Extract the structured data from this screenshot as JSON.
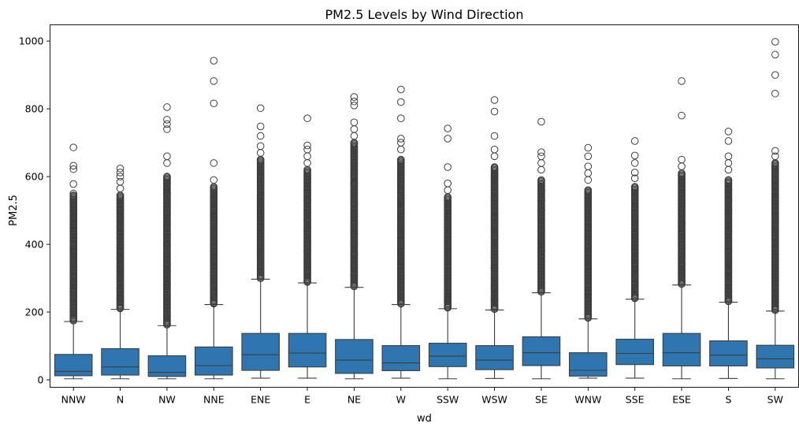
{
  "chart_data": {
    "type": "boxplot",
    "title": "PM2.5 Levels by Wind Direction",
    "xlabel": "wd",
    "ylabel": "PM2.5",
    "ylim": [
      -22,
      1048
    ],
    "yticks": [
      0,
      200,
      400,
      600,
      800,
      1000
    ],
    "grid": false,
    "legend": "none",
    "colors": {
      "box": "#2f75b0",
      "line": "#3d3d3d",
      "flier": "#3d3d3d"
    },
    "categories": [
      "NNW",
      "N",
      "NW",
      "NNE",
      "ENE",
      "E",
      "NE",
      "W",
      "SSW",
      "WSW",
      "SE",
      "WNW",
      "SSE",
      "ESE",
      "S",
      "SW"
    ],
    "boxes": [
      {
        "min": 3,
        "q1": 12,
        "median": 25,
        "q3": 75,
        "max": 172,
        "outliers": [
          175,
          200,
          230,
          260,
          290,
          320,
          350,
          380,
          410,
          440,
          460,
          480,
          500,
          525,
          545,
          550,
          578,
          622,
          632,
          686
        ]
      },
      {
        "min": 3,
        "q1": 14,
        "median": 38,
        "q3": 92,
        "max": 208,
        "outliers": [
          212,
          240,
          270,
          300,
          330,
          360,
          390,
          420,
          450,
          480,
          500,
          520,
          545,
          565,
          585,
          600,
          612,
          624
        ]
      },
      {
        "min": 3,
        "q1": 10,
        "median": 22,
        "q3": 71,
        "max": 160,
        "outliers": [
          163,
          190,
          220,
          250,
          280,
          310,
          340,
          370,
          400,
          430,
          460,
          490,
          520,
          550,
          580,
          600,
          640,
          660,
          740,
          755,
          768,
          805
        ]
      },
      {
        "min": 3,
        "q1": 14,
        "median": 42,
        "q3": 97,
        "max": 222,
        "outliers": [
          226,
          260,
          290,
          320,
          350,
          380,
          410,
          440,
          470,
          500,
          530,
          550,
          570,
          590,
          640,
          816,
          882,
          942
        ]
      },
      {
        "min": 5,
        "q1": 28,
        "median": 74,
        "q3": 137,
        "max": 297,
        "outliers": [
          300,
          330,
          360,
          390,
          420,
          450,
          480,
          510,
          540,
          570,
          600,
          630,
          650,
          670,
          690,
          720,
          748,
          802
        ]
      },
      {
        "min": 5,
        "q1": 38,
        "median": 79,
        "q3": 137,
        "max": 286,
        "outliers": [
          290,
          320,
          350,
          380,
          410,
          440,
          470,
          500,
          530,
          560,
          590,
          620,
          640,
          660,
          680,
          692,
          772
        ]
      },
      {
        "min": 3,
        "q1": 19,
        "median": 58,
        "q3": 119,
        "max": 273,
        "outliers": [
          276,
          310,
          340,
          370,
          400,
          430,
          460,
          490,
          520,
          550,
          580,
          610,
          640,
          660,
          680,
          700,
          720,
          740,
          760,
          810,
          822,
          835
        ]
      },
      {
        "min": 5,
        "q1": 27,
        "median": 50,
        "q3": 101,
        "max": 222,
        "outliers": [
          225,
          260,
          290,
          320,
          350,
          380,
          410,
          440,
          470,
          500,
          530,
          560,
          600,
          620,
          650,
          680,
          700,
          712,
          772,
          820,
          857
        ]
      },
      {
        "min": 3,
        "q1": 39,
        "median": 70,
        "q3": 108,
        "max": 210,
        "outliers": [
          213,
          240,
          270,
          300,
          330,
          360,
          390,
          420,
          450,
          480,
          510,
          540,
          560,
          580,
          628,
          712,
          742
        ]
      },
      {
        "min": 4,
        "q1": 30,
        "median": 58,
        "q3": 101,
        "max": 206,
        "outliers": [
          209,
          240,
          270,
          300,
          330,
          360,
          390,
          420,
          450,
          480,
          510,
          540,
          570,
          600,
          628,
          660,
          680,
          720,
          792,
          826
        ]
      },
      {
        "min": 3,
        "q1": 42,
        "median": 80,
        "q3": 127,
        "max": 257,
        "outliers": [
          260,
          290,
          320,
          350,
          380,
          410,
          440,
          470,
          500,
          530,
          560,
          590,
          620,
          640,
          660,
          672,
          762
        ]
      },
      {
        "min": 5,
        "q1": 11,
        "median": 28,
        "q3": 80,
        "max": 180,
        "outliers": [
          183,
          210,
          240,
          270,
          300,
          330,
          360,
          390,
          420,
          450,
          480,
          510,
          540,
          560,
          590,
          610,
          630,
          660,
          685
        ]
      },
      {
        "min": 5,
        "q1": 45,
        "median": 78,
        "q3": 120,
        "max": 238,
        "outliers": [
          241,
          270,
          300,
          330,
          360,
          390,
          420,
          450,
          480,
          510,
          540,
          570,
          595,
          612,
          640,
          662,
          705
        ]
      },
      {
        "min": 3,
        "q1": 41,
        "median": 80,
        "q3": 137,
        "max": 280,
        "outliers": [
          283,
          310,
          340,
          370,
          400,
          430,
          460,
          490,
          520,
          550,
          580,
          610,
          630,
          650,
          780,
          882
        ]
      },
      {
        "min": 4,
        "q1": 41,
        "median": 73,
        "q3": 115,
        "max": 229,
        "outliers": [
          232,
          260,
          290,
          320,
          350,
          380,
          410,
          440,
          470,
          500,
          530,
          560,
          590,
          620,
          640,
          660,
          705,
          733
        ]
      },
      {
        "min": 3,
        "q1": 35,
        "median": 62,
        "q3": 102,
        "max": 203,
        "outliers": [
          206,
          240,
          270,
          300,
          330,
          360,
          390,
          420,
          450,
          480,
          510,
          540,
          570,
          590,
          620,
          640,
          660,
          676,
          845,
          900,
          960,
          998
        ]
      }
    ]
  }
}
